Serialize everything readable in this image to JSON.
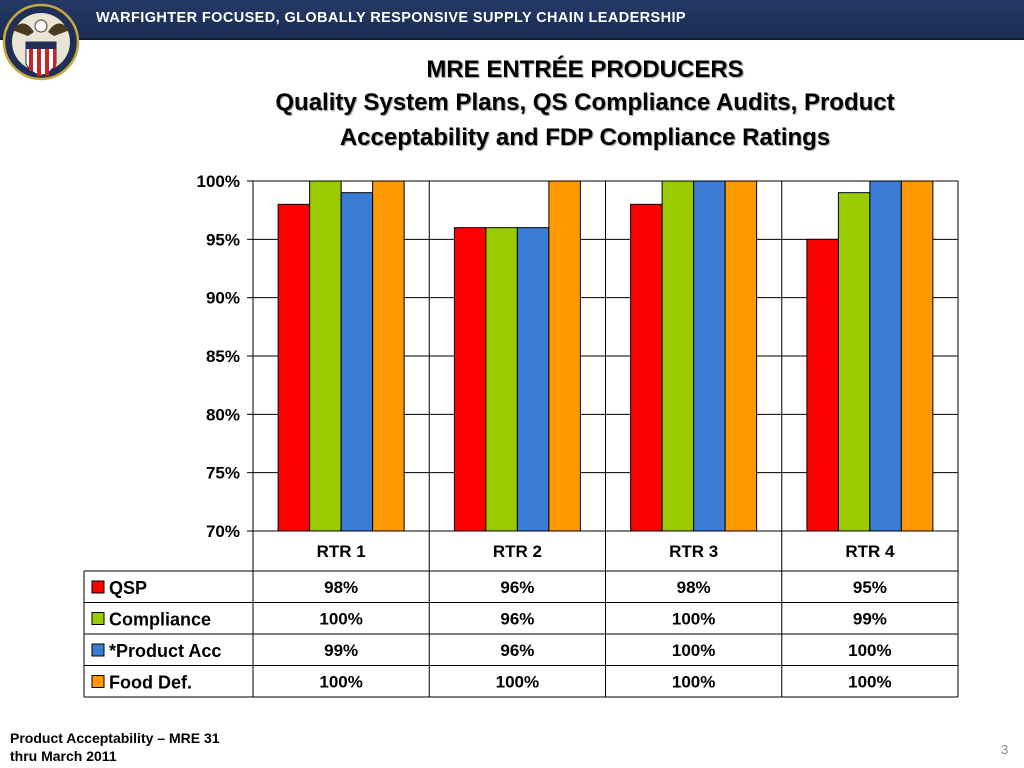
{
  "header": {
    "banner_text": "WARFIGHTER FOCUSED, GLOBALLY RESPONSIVE SUPPLY CHAIN LEADERSHIP"
  },
  "slide": {
    "title_line1": "MRE ENTRÉE PRODUCERS",
    "title_line2": "Quality System Plans, QS Compliance Audits, Product",
    "title_line3": "Acceptability and FDP Compliance Ratings",
    "footnote_line1": "Product Acceptability – MRE 31",
    "footnote_line2": "thru March 2011",
    "page_number": "3"
  },
  "chart_data": {
    "type": "bar",
    "categories": [
      "RTR 1",
      "RTR 2",
      "RTR  3",
      "RTR 4"
    ],
    "series": [
      {
        "name": "QSP",
        "color": "#ff0000",
        "values": [
          98,
          96,
          98,
          95
        ],
        "labels": [
          "98%",
          "96%",
          "98%",
          "95%"
        ]
      },
      {
        "name": "Compliance",
        "color": "#99cc00",
        "values": [
          100,
          96,
          100,
          99
        ],
        "labels": [
          "100%",
          "96%",
          "100%",
          "99%"
        ]
      },
      {
        "name": "*Product Acc",
        "color": "#3a7bd5",
        "values": [
          99,
          96,
          100,
          100
        ],
        "labels": [
          "99%",
          "96%",
          "100%",
          "100%"
        ]
      },
      {
        "name": "Food Def.",
        "color": "#ff9900",
        "values": [
          100,
          100,
          100,
          100
        ],
        "labels": [
          "100%",
          "100%",
          "100%",
          "100%"
        ]
      }
    ],
    "ylim": [
      70,
      100
    ],
    "yticks": [
      70,
      75,
      80,
      85,
      90,
      95,
      100
    ],
    "ytick_labels": [
      "70%",
      "75%",
      "80%",
      "85%",
      "90%",
      "95%",
      "100%"
    ],
    "grid": true,
    "legend": "data-table"
  }
}
